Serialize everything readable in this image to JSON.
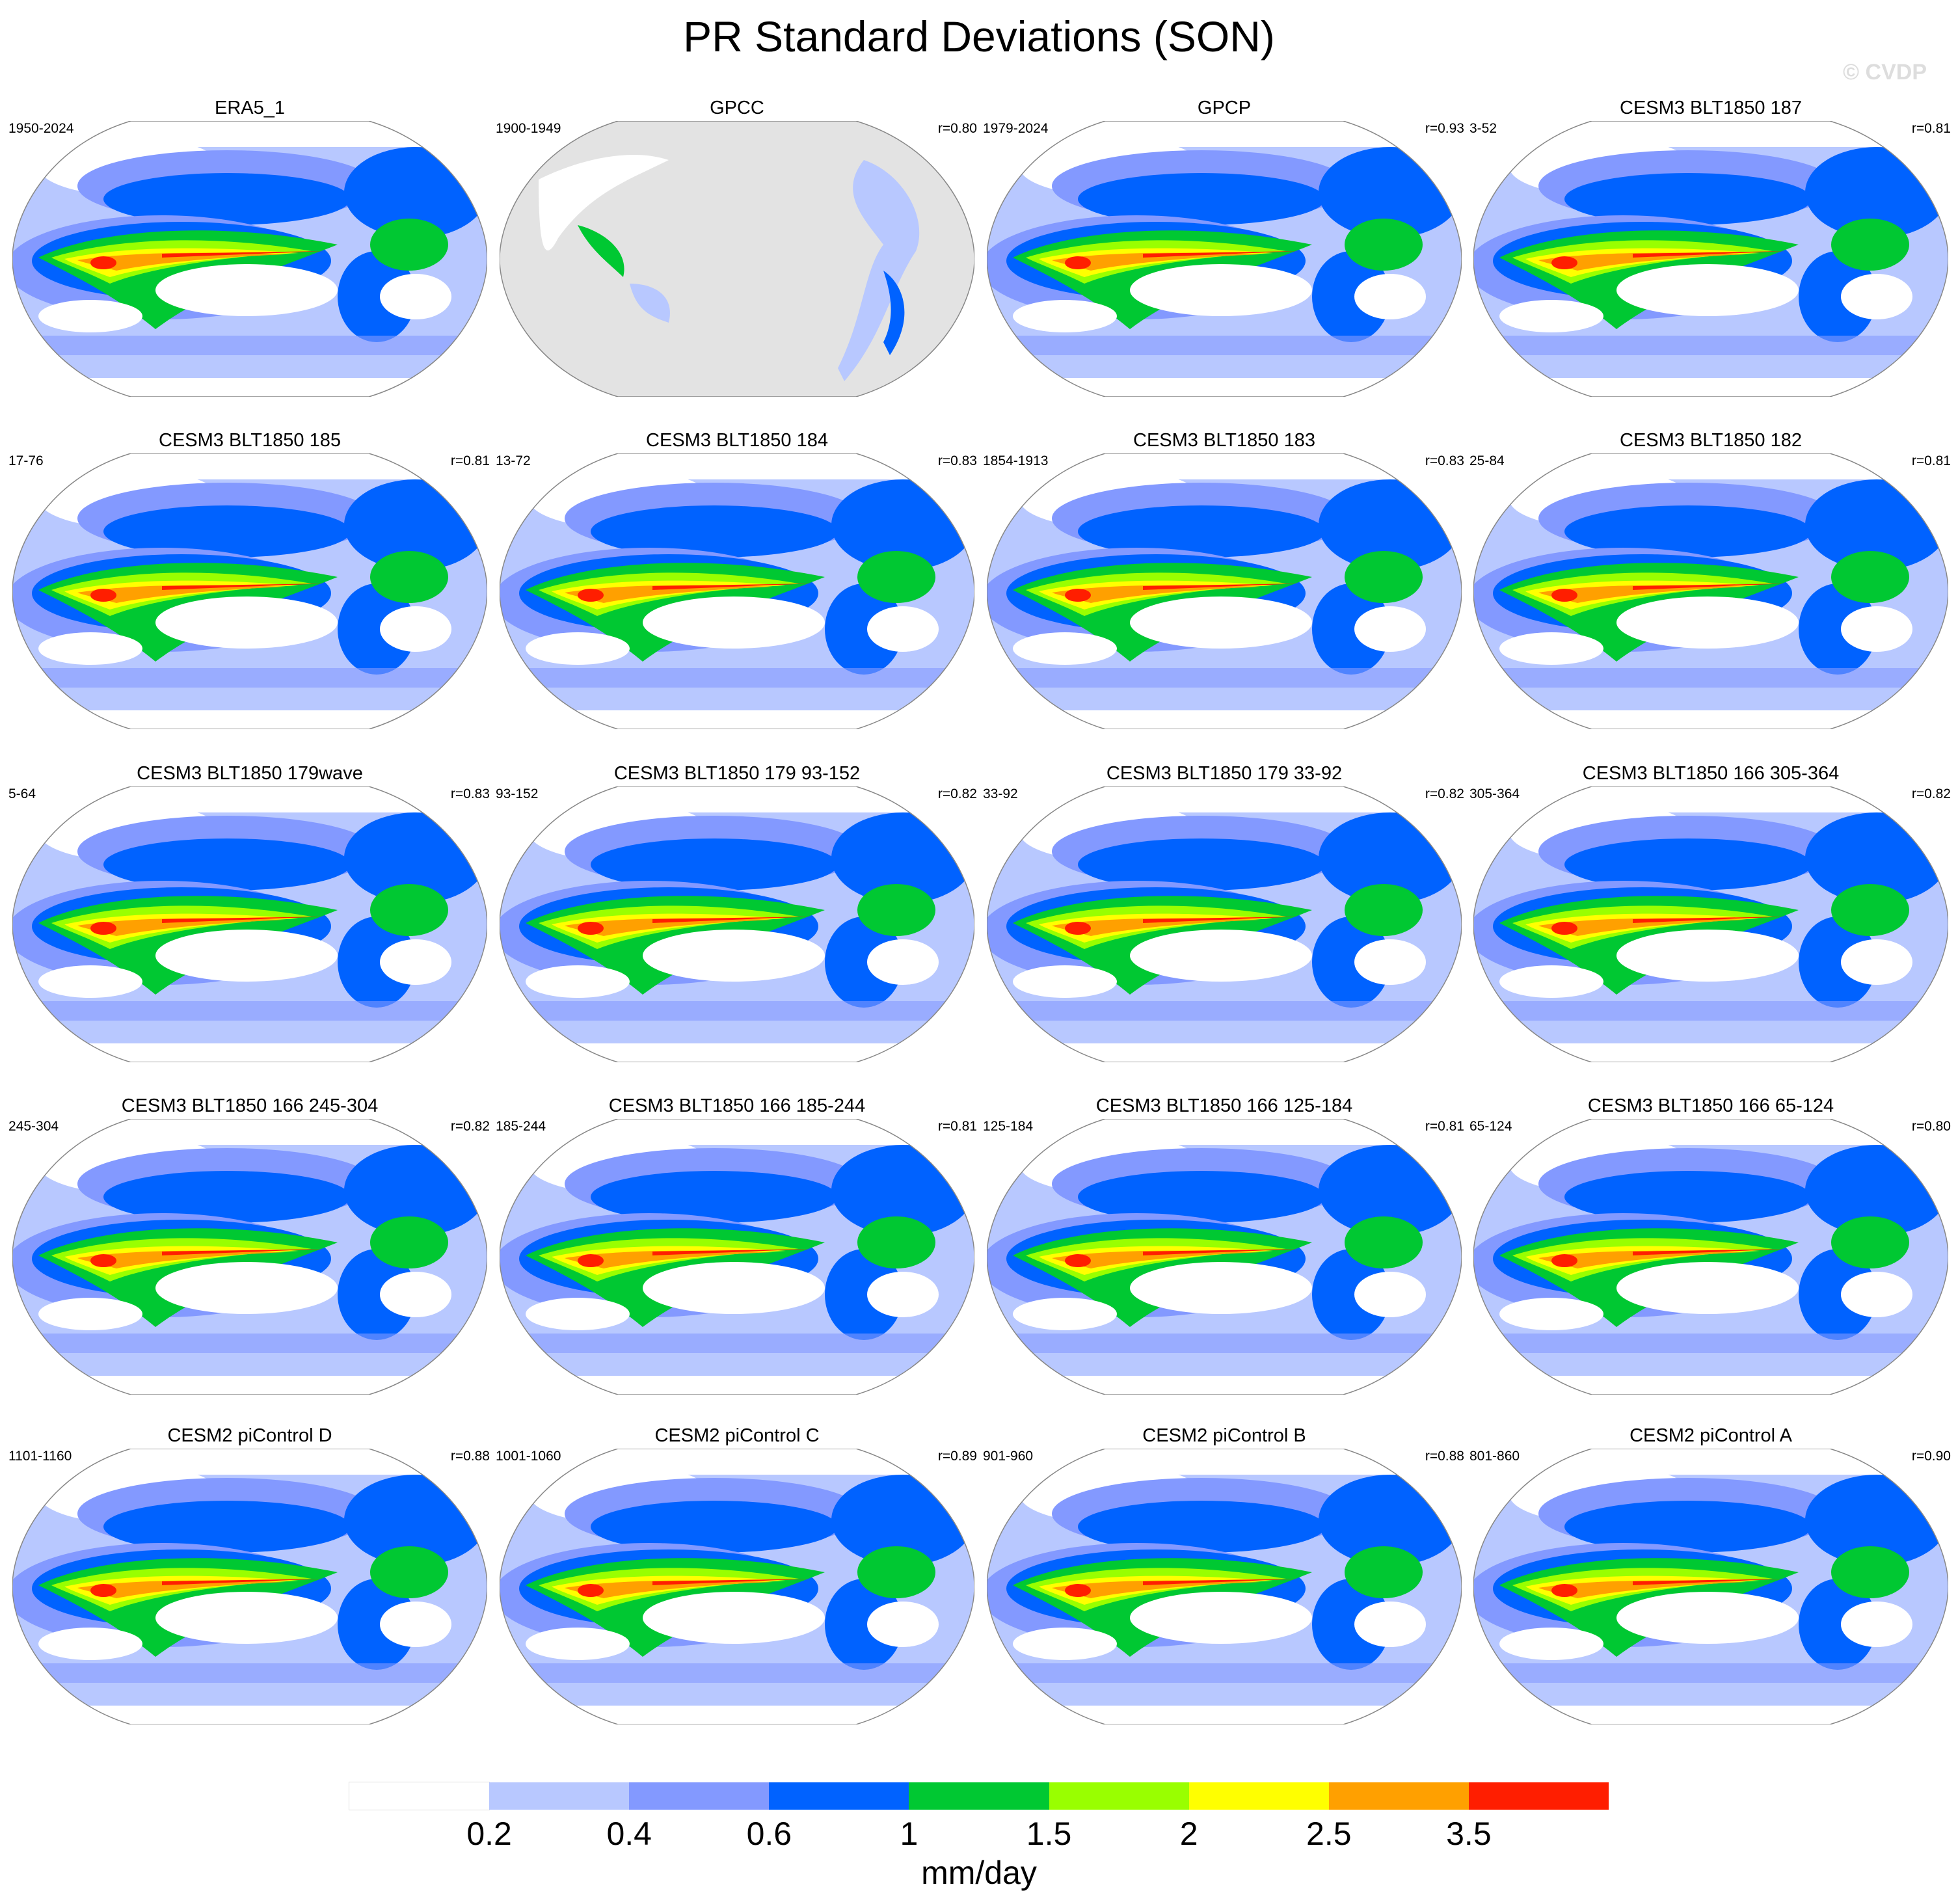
{
  "title": "PR Standard Deviations (SON)",
  "copyright": "© CVDP",
  "chart_data": {
    "type": "heatmap",
    "title": "PR Standard Deviations (SON)",
    "units": "mm/day",
    "colorbar": {
      "levels": [
        "0.2",
        "0.4",
        "0.6",
        "1",
        "1.5",
        "2",
        "2.5",
        "3.5"
      ],
      "colors": [
        "#ffffff",
        "#b8c8ff",
        "#8399ff",
        "#0062ff",
        "#00c832",
        "#99ff00",
        "#ffff00",
        "#ffa000",
        "#ff1e00"
      ]
    },
    "panels": [
      {
        "title": "ERA5_1",
        "years": "1950-2024",
        "r": ""
      },
      {
        "title": "GPCC",
        "years": "1900-1949",
        "r": "r=0.80"
      },
      {
        "title": "GPCP",
        "years": "1979-2024",
        "r": "r=0.93"
      },
      {
        "title": "CESM3 BLT1850 187",
        "years": "3-52",
        "r": "r=0.81"
      },
      {
        "title": "CESM3 BLT1850 185",
        "years": "17-76",
        "r": "r=0.81"
      },
      {
        "title": "CESM3 BLT1850 184",
        "years": "13-72",
        "r": "r=0.83"
      },
      {
        "title": "CESM3 BLT1850 183",
        "years": "1854-1913",
        "r": "r=0.83"
      },
      {
        "title": "CESM3 BLT1850 182",
        "years": "25-84",
        "r": "r=0.81"
      },
      {
        "title": "CESM3 BLT1850 179wave",
        "years": "5-64",
        "r": "r=0.83"
      },
      {
        "title": "CESM3 BLT1850 179 93-152",
        "years": "93-152",
        "r": "r=0.82"
      },
      {
        "title": "CESM3 BLT1850 179 33-92",
        "years": "33-92",
        "r": "r=0.82"
      },
      {
        "title": "CESM3 BLT1850 166 305-364",
        "years": "305-364",
        "r": "r=0.82"
      },
      {
        "title": "CESM3 BLT1850 166 245-304",
        "years": "245-304",
        "r": "r=0.82"
      },
      {
        "title": "CESM3 BLT1850 166 185-244",
        "years": "185-244",
        "r": "r=0.81"
      },
      {
        "title": "CESM3 BLT1850 166 125-184",
        "years": "125-184",
        "r": "r=0.81"
      },
      {
        "title": "CESM3 BLT1850 166 65-124",
        "years": "65-124",
        "r": "r=0.80"
      },
      {
        "title": "CESM2 piControl D",
        "years": "1101-1160",
        "r": "r=0.88"
      },
      {
        "title": "CESM2 piControl C",
        "years": "1001-1060",
        "r": "r=0.89"
      },
      {
        "title": "CESM2 piControl B",
        "years": "901-960",
        "r": "r=0.88"
      },
      {
        "title": "CESM2 piControl A",
        "years": "801-860",
        "r": "r=0.90"
      }
    ]
  }
}
